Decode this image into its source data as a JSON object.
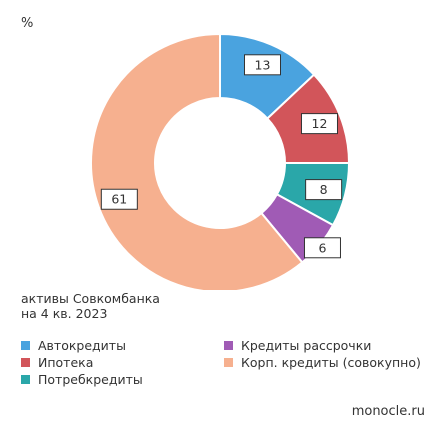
{
  "chart_data": {
    "type": "donut",
    "unit": "%",
    "caption_lines": [
      "активы Совкомбанка",
      "на 4 кв. 2023"
    ],
    "categories": [
      "Автокредиты",
      "Ипотека",
      "Потребкредиты",
      "Кредиты рассрочки",
      "Корп. кредиты (совокупно)"
    ],
    "values": [
      13,
      12,
      8,
      6,
      61
    ],
    "colors": [
      "#4aa3df",
      "#d2555a",
      "#2aa7a9",
      "#a05bb5",
      "#f6b08f"
    ],
    "legend_placement": "bottom"
  },
  "source": "monocle.ru"
}
